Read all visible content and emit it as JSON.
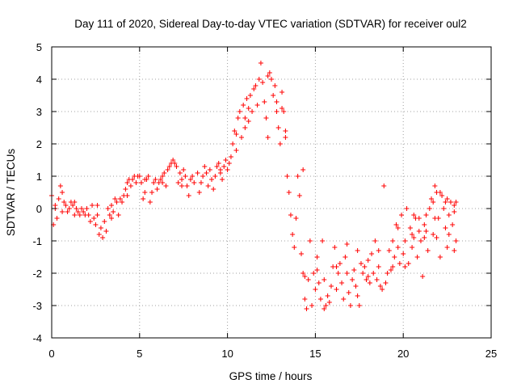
{
  "chart_data": {
    "type": "scatter",
    "title": "Day 111 of 2020, Sidereal Day-to-day VTEC variation (SDTVAR) for receiver oul2",
    "xlabel": "GPS time / hours",
    "ylabel": "SDTVAR / TECUs",
    "xlim": [
      0,
      25
    ],
    "ylim": [
      -4,
      5
    ],
    "xticks": [
      0,
      5,
      10,
      15,
      20,
      25
    ],
    "yticks": [
      -4,
      -3,
      -2,
      -1,
      0,
      1,
      2,
      3,
      4,
      5
    ],
    "grid": true,
    "marker": "+",
    "color": "#ff0000",
    "series": [
      {
        "name": "SDTVAR",
        "points": [
          [
            0.0,
            0.4
          ],
          [
            0.1,
            -0.5
          ],
          [
            0.2,
            0.1
          ],
          [
            0.3,
            -0.3
          ],
          [
            0.4,
            0.3
          ],
          [
            0.5,
            0.7
          ],
          [
            0.6,
            0.5
          ],
          [
            0.7,
            0.2
          ],
          [
            0.8,
            0.1
          ],
          [
            0.9,
            -0.1
          ],
          [
            1.0,
            0.0
          ],
          [
            1.1,
            0.2
          ],
          [
            1.2,
            0.1
          ],
          [
            1.3,
            -0.2
          ],
          [
            1.4,
            0.0
          ],
          [
            1.5,
            -0.1
          ],
          [
            1.6,
            -0.2
          ],
          [
            1.7,
            0.0
          ],
          [
            1.8,
            -0.1
          ],
          [
            1.9,
            -0.2
          ],
          [
            2.0,
            0.0
          ],
          [
            2.1,
            -0.2
          ],
          [
            2.2,
            -0.4
          ],
          [
            2.3,
            0.1
          ],
          [
            2.4,
            -0.3
          ],
          [
            2.5,
            -0.5
          ],
          [
            2.6,
            -0.2
          ],
          [
            2.7,
            -0.8
          ],
          [
            2.8,
            -0.6
          ],
          [
            2.9,
            -0.9
          ],
          [
            3.0,
            -0.4
          ],
          [
            3.1,
            -0.7
          ],
          [
            3.2,
            0.0
          ],
          [
            3.3,
            -0.2
          ],
          [
            3.4,
            0.1
          ],
          [
            3.5,
            -0.1
          ],
          [
            3.6,
            0.3
          ],
          [
            3.7,
            0.2
          ],
          [
            3.8,
            -0.2
          ],
          [
            3.9,
            0.3
          ],
          [
            4.0,
            0.2
          ],
          [
            4.1,
            0.4
          ],
          [
            4.2,
            0.6
          ],
          [
            4.3,
            0.8
          ],
          [
            4.4,
            0.9
          ],
          [
            4.5,
            0.7
          ],
          [
            4.6,
            0.9
          ],
          [
            4.7,
            1.0
          ],
          [
            4.8,
            0.8
          ],
          [
            4.9,
            1.0
          ],
          [
            5.0,
            1.0
          ],
          [
            5.1,
            0.8
          ],
          [
            5.2,
            0.3
          ],
          [
            5.3,
            0.5
          ],
          [
            5.4,
            0.9
          ],
          [
            5.5,
            1.0
          ],
          [
            5.6,
            0.2
          ],
          [
            5.7,
            0.5
          ],
          [
            5.8,
            0.8
          ],
          [
            5.9,
            0.9
          ],
          [
            6.0,
            0.6
          ],
          [
            6.1,
            0.8
          ],
          [
            6.2,
            0.9
          ],
          [
            6.3,
            1.0
          ],
          [
            6.4,
            1.1
          ],
          [
            6.5,
            0.7
          ],
          [
            6.6,
            1.2
          ],
          [
            6.7,
            1.3
          ],
          [
            6.8,
            1.4
          ],
          [
            6.9,
            1.5
          ],
          [
            7.0,
            1.4
          ],
          [
            7.1,
            1.3
          ],
          [
            7.2,
            0.8
          ],
          [
            7.3,
            1.1
          ],
          [
            7.4,
            0.9
          ],
          [
            7.5,
            1.2
          ],
          [
            7.6,
            1.0
          ],
          [
            7.7,
            0.7
          ],
          [
            7.8,
            0.4
          ],
          [
            7.9,
            0.9
          ],
          [
            8.0,
            1.0
          ],
          [
            8.1,
            0.8
          ],
          [
            8.4,
            0.5
          ],
          [
            8.5,
            0.8
          ],
          [
            8.6,
            1.0
          ],
          [
            8.7,
            1.3
          ],
          [
            8.8,
            1.1
          ],
          [
            8.9,
            0.7
          ],
          [
            9.0,
            1.2
          ],
          [
            9.1,
            0.9
          ],
          [
            9.2,
            0.6
          ],
          [
            9.3,
            1.0
          ],
          [
            9.4,
            1.3
          ],
          [
            9.5,
            1.4
          ],
          [
            9.6,
            1.1
          ],
          [
            9.7,
            0.9
          ],
          [
            9.8,
            1.3
          ],
          [
            9.9,
            1.5
          ],
          [
            10.0,
            1.2
          ],
          [
            10.1,
            1.4
          ],
          [
            10.2,
            1.6
          ],
          [
            10.3,
            2.0
          ],
          [
            10.4,
            2.4
          ],
          [
            10.5,
            1.8
          ],
          [
            10.6,
            2.8
          ],
          [
            10.7,
            3.0
          ],
          [
            10.8,
            2.2
          ],
          [
            10.9,
            3.2
          ],
          [
            11.0,
            2.5
          ],
          [
            11.1,
            3.4
          ],
          [
            11.2,
            2.7
          ],
          [
            11.3,
            3.5
          ],
          [
            11.4,
            3.0
          ],
          [
            11.5,
            3.7
          ],
          [
            11.6,
            3.8
          ],
          [
            11.7,
            3.2
          ],
          [
            11.8,
            4.0
          ],
          [
            11.9,
            4.5
          ],
          [
            12.0,
            3.9
          ],
          [
            12.1,
            3.3
          ],
          [
            12.2,
            2.8
          ],
          [
            12.3,
            2.2
          ],
          [
            12.4,
            4.2
          ],
          [
            12.5,
            4.0
          ],
          [
            12.6,
            3.5
          ],
          [
            12.7,
            3.8
          ],
          [
            12.8,
            3.0
          ],
          [
            12.9,
            2.5
          ],
          [
            13.0,
            2.0
          ],
          [
            13.1,
            3.6
          ],
          [
            13.2,
            3.0
          ],
          [
            13.3,
            2.4
          ],
          [
            13.4,
            1.0
          ],
          [
            13.5,
            0.5
          ],
          [
            13.6,
            -0.2
          ],
          [
            13.7,
            -0.8
          ],
          [
            13.8,
            -1.2
          ],
          [
            13.9,
            -0.3
          ],
          [
            14.0,
            1.0
          ],
          [
            14.1,
            0.4
          ],
          [
            14.2,
            -1.4
          ],
          [
            14.3,
            -2.0
          ],
          [
            14.4,
            -2.8
          ],
          [
            14.5,
            -3.1
          ],
          [
            14.6,
            -2.2
          ],
          [
            14.7,
            -1.0
          ],
          [
            14.8,
            -3.0
          ],
          [
            14.9,
            -2.0
          ],
          [
            15.0,
            -2.5
          ],
          [
            15.1,
            -1.5
          ],
          [
            15.2,
            -2.3
          ],
          [
            15.3,
            -2.8
          ],
          [
            15.4,
            -1.0
          ],
          [
            15.5,
            -2.2
          ],
          [
            15.6,
            -3.0
          ],
          [
            15.7,
            -2.7
          ],
          [
            15.8,
            -2.9
          ],
          [
            15.9,
            -2.4
          ],
          [
            16.0,
            -1.8
          ],
          [
            16.1,
            -1.2
          ],
          [
            16.2,
            -2.5
          ],
          [
            16.3,
            -2.0
          ],
          [
            16.4,
            -1.7
          ],
          [
            16.5,
            -2.3
          ],
          [
            16.6,
            -2.8
          ],
          [
            16.7,
            -1.5
          ],
          [
            16.8,
            -2.0
          ],
          [
            16.9,
            -2.6
          ],
          [
            17.0,
            -3.0
          ],
          [
            17.1,
            -2.2
          ],
          [
            17.2,
            -1.9
          ],
          [
            17.3,
            -2.4
          ],
          [
            17.4,
            -2.7
          ],
          [
            17.5,
            -3.0
          ],
          [
            17.6,
            -1.7
          ],
          [
            17.7,
            -2.0
          ],
          [
            17.8,
            -1.8
          ],
          [
            17.9,
            -2.2
          ],
          [
            18.0,
            -1.6
          ],
          [
            18.1,
            -2.3
          ],
          [
            18.2,
            -1.4
          ],
          [
            18.3,
            -2.0
          ],
          [
            18.4,
            -1.0
          ],
          [
            18.5,
            -2.2
          ],
          [
            18.6,
            -1.3
          ],
          [
            18.7,
            -2.4
          ],
          [
            18.8,
            -2.5
          ],
          [
            18.9,
            0.7
          ],
          [
            19.0,
            -2.3
          ],
          [
            19.1,
            -2.0
          ],
          [
            19.2,
            -1.3
          ],
          [
            19.3,
            -1.9
          ],
          [
            19.4,
            -1.0
          ],
          [
            19.5,
            -1.5
          ],
          [
            19.6,
            -0.5
          ],
          [
            19.7,
            -1.2
          ],
          [
            19.8,
            -1.7
          ],
          [
            19.9,
            -0.2
          ],
          [
            20.0,
            -1.4
          ],
          [
            20.1,
            -1.0
          ],
          [
            20.2,
            0.0
          ],
          [
            20.3,
            -1.7
          ],
          [
            20.4,
            -0.6
          ],
          [
            20.5,
            -1.2
          ],
          [
            20.6,
            -0.9
          ],
          [
            20.7,
            -0.3
          ],
          [
            20.8,
            -1.5
          ],
          [
            20.9,
            -0.7
          ],
          [
            21.0,
            -1.0
          ],
          [
            21.1,
            -2.1
          ],
          [
            21.2,
            -0.5
          ],
          [
            21.3,
            -0.2
          ],
          [
            21.4,
            -1.3
          ],
          [
            21.5,
            0.0
          ],
          [
            21.6,
            0.3
          ],
          [
            21.7,
            -0.8
          ],
          [
            21.8,
            0.7
          ],
          [
            21.9,
            0.5
          ],
          [
            22.0,
            -0.3
          ],
          [
            22.1,
            -1.5
          ],
          [
            22.2,
            0.4
          ],
          [
            22.3,
            0.0
          ],
          [
            22.4,
            -0.6
          ],
          [
            22.5,
            -1.2
          ],
          [
            22.6,
            -0.2
          ],
          [
            22.7,
            0.2
          ],
          [
            22.8,
            -0.5
          ],
          [
            22.9,
            0.1
          ],
          [
            23.0,
            -1.0
          ],
          [
            22.5,
            0.3
          ],
          [
            22.1,
            0.5
          ],
          [
            21.7,
            0.2
          ],
          [
            21.3,
            -0.7
          ],
          [
            20.9,
            -0.3
          ],
          [
            20.5,
            -0.8
          ],
          [
            20.1,
            -1.8
          ],
          [
            19.7,
            -0.6
          ],
          [
            21.9,
            -0.9
          ],
          [
            22.6,
            -0.8
          ],
          [
            22.9,
            -1.3
          ],
          [
            0.2,
            0.0
          ],
          [
            0.6,
            -0.1
          ],
          [
            1.3,
            0.2
          ],
          [
            2.6,
            0.1
          ],
          [
            3.4,
            -0.3
          ],
          [
            4.3,
            0.4
          ],
          [
            5.3,
            0.9
          ],
          [
            6.3,
            0.8
          ],
          [
            7.4,
            0.7
          ],
          [
            8.3,
            1.1
          ],
          [
            9.6,
            1.2
          ],
          [
            10.5,
            2.3
          ],
          [
            11.0,
            2.8
          ],
          [
            11.2,
            3.1
          ],
          [
            12.3,
            4.1
          ],
          [
            12.8,
            3.3
          ],
          [
            13.1,
            3.1
          ],
          [
            13.3,
            2.2
          ],
          [
            14.3,
            1.2
          ],
          [
            14.4,
            -2.1
          ],
          [
            15.1,
            -1.9
          ],
          [
            15.5,
            -3.1
          ],
          [
            16.2,
            -1.8
          ],
          [
            16.8,
            -1.1
          ],
          [
            17.4,
            -1.3
          ],
          [
            18.0,
            -2.1
          ],
          [
            18.6,
            -1.8
          ],
          [
            19.4,
            -1.8
          ],
          [
            20.6,
            -0.2
          ],
          [
            21.2,
            -0.9
          ],
          [
            21.8,
            -0.3
          ],
          [
            22.4,
            0.2
          ],
          [
            22.9,
            -0.1
          ],
          [
            23.0,
            0.2
          ]
        ]
      }
    ]
  }
}
